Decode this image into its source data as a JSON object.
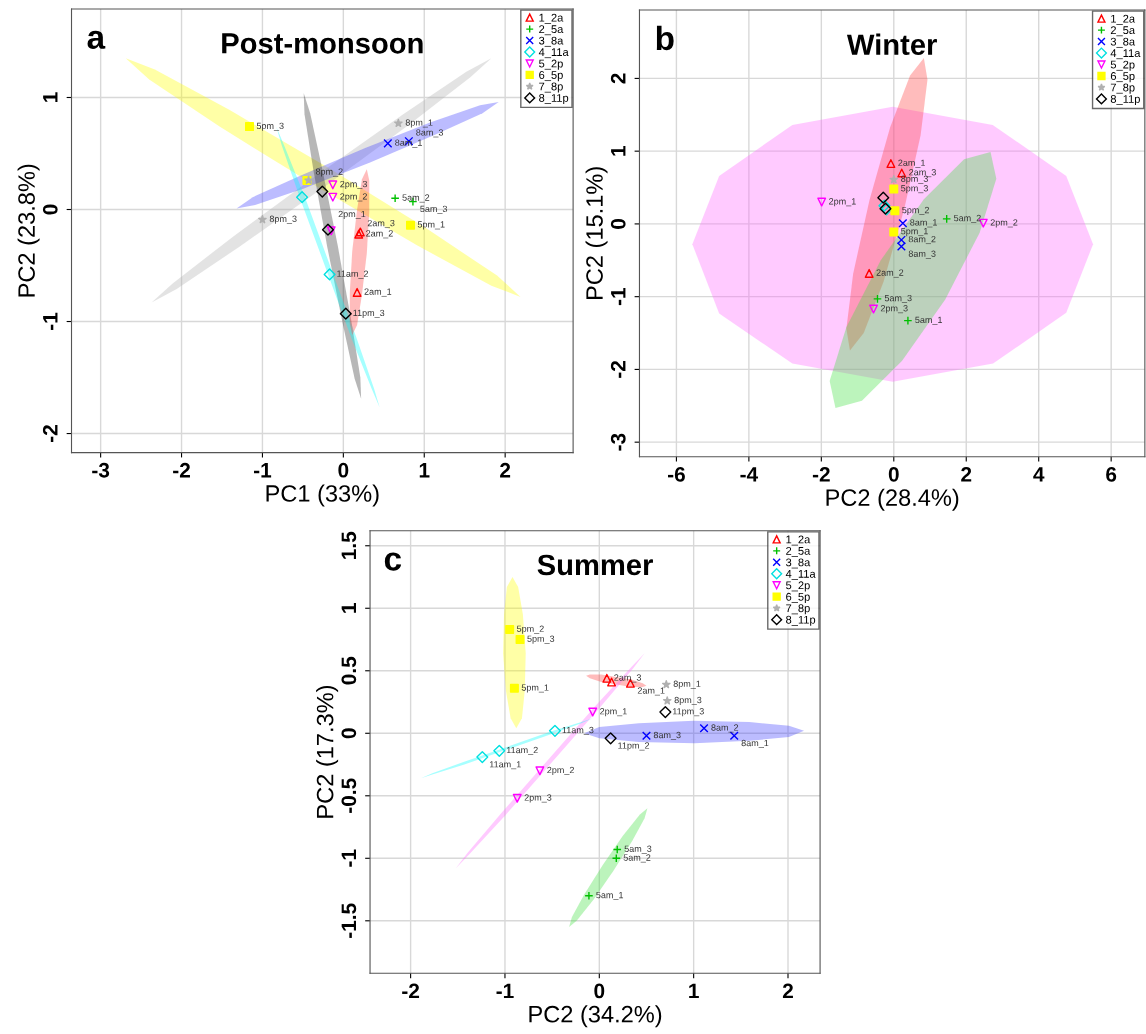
{
  "chart_data": [
    {
      "type": "scatter",
      "title": "Post-monsoon",
      "xlabel": "PC1 (33%)",
      "ylabel": "PC2 (23.8%)",
      "xlim": [
        -3.36,
        2.84
      ],
      "ylim": [
        -2.17,
        1.79
      ],
      "xticks": [
        -3,
        -2,
        -1,
        0,
        1,
        2
      ],
      "yticks": [
        -2,
        -1,
        0,
        1
      ],
      "grid": true,
      "legend": "top right",
      "series": [
        {
          "type": "area",
          "color": "#ffff00",
          "x": [
            -2.69,
            -2.33,
            -1.41,
            -0.18,
            1.03,
            1.9,
            2.19,
            1.83,
            0.91,
            -0.32,
            -1.53,
            -2.4
          ],
          "values": [
            1.35,
            1.25,
            0.89,
            0.37,
            -0.17,
            -0.59,
            -0.78,
            -0.68,
            -0.32,
            0.2,
            0.74,
            1.16
          ]
        },
        {
          "type": "area",
          "color": "#b0b0b0",
          "x": [
            -2.37,
            -2.06,
            -1.28,
            -0.22,
            0.82,
            1.57,
            1.83,
            1.52,
            0.74,
            -0.32,
            -1.36,
            -2.11
          ],
          "values": [
            -0.83,
            -0.71,
            -0.33,
            0.21,
            0.76,
            1.18,
            1.35,
            1.23,
            0.85,
            0.31,
            -0.24,
            -0.66
          ]
        },
        {
          "type": "area",
          "color": "#4040ff",
          "x": [
            -1.32,
            -1.09,
            -0.48,
            0.33,
            1.14,
            1.72,
            1.92,
            1.69,
            1.08,
            0.27,
            -0.54,
            -1.12
          ],
          "values": [
            0.01,
            0.04,
            0.19,
            0.42,
            0.67,
            0.86,
            0.96,
            0.93,
            0.78,
            0.55,
            0.3,
            0.11
          ]
        },
        {
          "type": "area",
          "color": "#303030",
          "x": [
            -0.49,
            -0.41,
            -0.26,
            -0.07,
            0.1,
            0.21,
            0.22,
            0.14,
            -0.01,
            -0.2,
            -0.37,
            -0.48
          ],
          "values": [
            1.04,
            0.86,
            0.36,
            -0.32,
            -1.0,
            -1.5,
            -1.69,
            -1.51,
            -1.01,
            -0.33,
            0.35,
            0.85
          ]
        },
        {
          "type": "area",
          "color": "#00ffff",
          "x": [
            -0.83,
            -0.73,
            -0.48,
            -0.16,
            0.16,
            0.38,
            0.45,
            0.35,
            0.1,
            -0.22,
            -0.54,
            -0.76
          ],
          "values": [
            0.74,
            0.57,
            0.12,
            -0.51,
            -1.14,
            -1.6,
            -1.77,
            -1.6,
            -1.15,
            -0.52,
            0.11,
            0.57
          ]
        },
        {
          "type": "area",
          "color": "#ff4040",
          "x": [
            0.29,
            0.32,
            0.32,
            0.29,
            0.23,
            0.17,
            0.11,
            0.08,
            0.08,
            0.11,
            0.17,
            0.23
          ],
          "values": [
            0.36,
            0.26,
            -0.02,
            -0.39,
            -0.76,
            -1.03,
            -1.12,
            -1.02,
            -0.74,
            -0.37,
            0,
            0.27
          ]
        },
        {
          "name": "1_2a",
          "type": "scatter",
          "color": "#ff0000",
          "marker": "triangle",
          "x": [
            0.17,
            0.19,
            0.21
          ],
          "values": [
            -0.74,
            -0.22,
            -0.2
          ]
        },
        {
          "name": "2_5a",
          "type": "scatter",
          "color": "#00c000",
          "marker": "plus",
          "x": [
            0.64,
            0.86
          ],
          "values": [
            0.1,
            0.07
          ]
        },
        {
          "name": "3_8a",
          "type": "scatter",
          "color": "#0000ff",
          "marker": "x",
          "x": [
            0.55,
            0.81
          ],
          "values": [
            0.59,
            0.61
          ]
        },
        {
          "name": "4_11a",
          "type": "scatter",
          "color": "#00e0e0",
          "marker": "diamond",
          "x": [
            -0.17,
            -0.51
          ],
          "values": [
            -0.58,
            0.11
          ]
        },
        {
          "name": "5_2p",
          "type": "scatter",
          "color": "#ff00ff",
          "marker": "triangle_down",
          "x": [
            -0.13,
            -0.13,
            -0.15
          ],
          "values": [
            0.22,
            0.11,
            -0.19
          ]
        },
        {
          "name": "6_5p",
          "type": "scatter",
          "color": "#ffff00",
          "marker": "square",
          "x": [
            -1.16,
            -0.45,
            0.83
          ],
          "values": [
            0.74,
            0.26,
            -0.14
          ]
        },
        {
          "name": "7_8p",
          "type": "scatter",
          "color": "#b0b0b0",
          "marker": "star",
          "x": [
            0.68,
            -1.0,
            -0.43
          ],
          "values": [
            0.77,
            -0.09,
            0.26
          ]
        },
        {
          "name": "8_11p",
          "type": "scatter",
          "color": "#000000",
          "marker": "diamond",
          "x": [
            0.03,
            -0.19,
            -0.26
          ],
          "values": [
            -0.93,
            -0.18,
            0.16
          ]
        }
      ],
      "annotations": [
        "a",
        {
          "text": "2am_1",
          "x": 0.17,
          "y": -0.74
        },
        {
          "text": "2am_2",
          "x": 0.19,
          "y": -0.22
        },
        {
          "text": "2am_3",
          "x": 0.21,
          "y": -0.2
        },
        {
          "text": "5am_2",
          "x": 0.64,
          "y": 0.1
        },
        {
          "text": "5am_3",
          "x": 0.86,
          "y": 0.07
        },
        {
          "text": "8am_1",
          "x": 0.55,
          "y": 0.59
        },
        {
          "text": "8am_3",
          "x": 0.81,
          "y": 0.61
        },
        {
          "text": "11am_2",
          "x": -0.17,
          "y": -0.58
        },
        {
          "text": "2pm_3",
          "x": -0.13,
          "y": 0.22
        },
        {
          "text": "2pm_2",
          "x": -0.13,
          "y": 0.11
        },
        {
          "text": "2pm_1",
          "x": -0.15,
          "y": -0.19
        },
        {
          "text": "5pm_3",
          "x": -1.16,
          "y": 0.74
        },
        {
          "text": "5pm_1",
          "x": 0.83,
          "y": -0.14
        },
        {
          "text": "8pm_1",
          "x": 0.68,
          "y": 0.77
        },
        {
          "text": "8pm_3",
          "x": -1.0,
          "y": -0.09
        },
        {
          "text": "8pm_2",
          "x": -0.43,
          "y": 0.26
        },
        {
          "text": "11pm_3",
          "x": 0.03,
          "y": -0.93
        }
      ]
    },
    {
      "type": "scatter",
      "title": "Winter",
      "xlabel": "PC2 (28.4%)",
      "ylabel": "PC2 (15.1%)",
      "xlim": [
        -7.02,
        6.93
      ],
      "ylim": [
        -3.2,
        2.94
      ],
      "xticks": [
        -6,
        -4,
        -2,
        0,
        2,
        4,
        6
      ],
      "yticks": [
        -3,
        -2,
        -1,
        0,
        1,
        2
      ],
      "grid": true,
      "legend": "top right",
      "series": [
        {
          "type": "area",
          "color": "#ff66ff",
          "x": [
            -5.56,
            -4.82,
            -2.8,
            -0.03,
            2.73,
            4.76,
            5.5,
            4.76,
            2.74,
            -0.03,
            -2.8,
            -4.82
          ],
          "values": [
            -0.28,
            0.66,
            1.36,
            1.61,
            1.36,
            0.66,
            -0.28,
            -1.22,
            -1.92,
            -2.17,
            -1.92,
            -1.23
          ]
        },
        {
          "type": "area",
          "color": "#ff4040",
          "x": [
            0.83,
            0.93,
            0.74,
            0.29,
            -0.28,
            -0.83,
            -1.21,
            -1.31,
            -1.12,
            -0.67,
            -0.1,
            0.45
          ],
          "values": [
            2.28,
            1.98,
            1.22,
            0.21,
            -0.79,
            -1.5,
            -1.74,
            -1.44,
            -0.68,
            0.33,
            1.33,
            2.04
          ]
        },
        {
          "type": "area",
          "color": "#40e040",
          "x": [
            2.67,
            2.83,
            2.37,
            1.42,
            0.23,
            -0.88,
            -1.61,
            -1.77,
            -1.31,
            -0.36,
            0.83,
            1.94
          ],
          "values": [
            0.99,
            0.62,
            -0.12,
            -1.04,
            -1.88,
            -2.43,
            -2.53,
            -2.16,
            -1.42,
            -0.5,
            0.34,
            0.89
          ]
        },
        {
          "name": "1_2a",
          "type": "scatter",
          "color": "#ff0000",
          "marker": "triangle",
          "x": [
            -0.08,
            0.22,
            -0.68
          ],
          "values": [
            0.83,
            0.7,
            -0.68
          ]
        },
        {
          "name": "2_5a",
          "type": "scatter",
          "color": "#00c000",
          "marker": "plus",
          "x": [
            1.46,
            -0.45,
            0.39
          ],
          "values": [
            0.07,
            -1.03,
            -1.33
          ]
        },
        {
          "name": "3_8a",
          "type": "scatter",
          "color": "#0000ff",
          "marker": "x",
          "x": [
            0.25,
            0.21,
            0.21
          ],
          "values": [
            0.01,
            -0.22,
            -0.31
          ]
        },
        {
          "name": "4_11a",
          "type": "scatter",
          "color": "#00e0e0",
          "marker": "diamond",
          "x": [
            -0.26,
            -0.2
          ],
          "values": [
            0.25,
            0.2
          ]
        },
        {
          "name": "5_2p",
          "type": "scatter",
          "color": "#ff00ff",
          "marker": "triangle_down",
          "x": [
            -1.99,
            2.47,
            -0.56
          ],
          "values": [
            0.3,
            0.01,
            -1.17
          ]
        },
        {
          "name": "6_5p",
          "type": "scatter",
          "color": "#ffff00",
          "marker": "square",
          "x": [
            0.0,
            0.0,
            0.03
          ],
          "values": [
            0.48,
            -0.11,
            0.18
          ]
        },
        {
          "name": "7_8p",
          "type": "scatter",
          "color": "#b0b0b0",
          "marker": "star",
          "x": [
            0.0
          ],
          "values": [
            0.61
          ]
        },
        {
          "name": "8_11p",
          "type": "scatter",
          "color": "#000000",
          "marker": "diamond",
          "x": [
            -0.29,
            -0.23
          ],
          "values": [
            0.36,
            0.21
          ]
        }
      ],
      "annotations": [
        "b",
        {
          "text": "2am_1",
          "x": -0.08,
          "y": 0.83
        },
        {
          "text": "2am_3",
          "x": 0.22,
          "y": 0.7
        },
        {
          "text": "2am_2",
          "x": -0.68,
          "y": -0.68
        },
        {
          "text": "5am_2",
          "x": 1.46,
          "y": 0.07
        },
        {
          "text": "5am_3",
          "x": -0.45,
          "y": -1.03
        },
        {
          "text": "5am_1",
          "x": 0.39,
          "y": -1.33
        },
        {
          "text": "8am_1",
          "x": 0.25,
          "y": 0.01
        },
        {
          "text": "8am_2",
          "x": 0.21,
          "y": -0.22
        },
        {
          "text": "8am_3",
          "x": 0.21,
          "y": -0.31
        },
        {
          "text": "2pm_1",
          "x": -1.99,
          "y": 0.3
        },
        {
          "text": "2pm_2",
          "x": 2.47,
          "y": 0.01
        },
        {
          "text": "2pm_3",
          "x": -0.56,
          "y": -1.17
        },
        {
          "text": "5pm_3",
          "x": 0.0,
          "y": 0.48
        },
        {
          "text": "5pm_1",
          "x": 0.0,
          "y": -0.11
        },
        {
          "text": "5pm_2",
          "x": 0.03,
          "y": 0.18
        },
        {
          "text": "8pm_3",
          "x": 0.0,
          "y": 0.61
        }
      ]
    },
    {
      "type": "scatter",
      "title": "Summer",
      "xlabel": "PC2 (34.2%)",
      "ylabel": "PC2 (17.3%)",
      "xlim": [
        -2.43,
        2.34
      ],
      "ylim": [
        -1.92,
        1.62
      ],
      "xticks": [
        -2,
        -1,
        0,
        1,
        2
      ],
      "yticks": [
        -1.5,
        -1,
        -0.5,
        0,
        0.5,
        1,
        1.5
      ],
      "grid": true,
      "legend": "top right",
      "series": [
        {
          "type": "area",
          "color": "#ffff00",
          "x": [
            -0.92,
            -0.86,
            -0.81,
            -0.78,
            -0.79,
            -0.82,
            -0.88,
            -0.94,
            -0.99,
            -1.02,
            -1.01,
            -0.98
          ],
          "values": [
            1.25,
            1.17,
            0.95,
            0.64,
            0.34,
            0.12,
            0.04,
            0.12,
            0.34,
            0.64,
            0.95,
            1.17
          ]
        },
        {
          "type": "area",
          "color": "#ff4040",
          "x": [
            -0.14,
            -0.1,
            0.02,
            0.18,
            0.34,
            0.46,
            0.5,
            0.46,
            0.34,
            0.18,
            0.02,
            -0.1
          ],
          "values": [
            0.46,
            0.47,
            0.47,
            0.45,
            0.43,
            0.4,
            0.38,
            0.37,
            0.37,
            0.39,
            0.41,
            0.44
          ]
        },
        {
          "type": "area",
          "color": "#ff66ff",
          "x": [
            0.48,
            0.36,
            0,
            -0.5,
            -1.0,
            -1.38,
            -1.52,
            -1.4,
            -1.04,
            -0.54,
            -0.04,
            0.34
          ],
          "values": [
            0.64,
            0.52,
            0.2,
            -0.23,
            -0.66,
            -0.97,
            -1.08,
            -0.96,
            -0.64,
            -0.21,
            0.22,
            0.53
          ]
        },
        {
          "type": "area",
          "color": "#00ffff",
          "x": [
            -1.89,
            -1.77,
            -1.43,
            -0.98,
            -0.52,
            -0.19,
            -0.07,
            -0.19,
            -0.53,
            -0.98,
            -1.44,
            -1.77
          ],
          "values": [
            -0.36,
            -0.33,
            -0.25,
            -0.13,
            -0.01,
            0.08,
            0.12,
            0.09,
            0.01,
            -0.11,
            -0.23,
            -0.32
          ]
        },
        {
          "type": "area",
          "color": "#4040ff",
          "x": [
            -0.16,
            0,
            0.42,
            1.0,
            1.59,
            2.01,
            2.17,
            2.01,
            1.59,
            1.01,
            0.42,
            0
          ],
          "values": [
            0.0,
            0.05,
            0.08,
            0.1,
            0.09,
            0.06,
            0.02,
            -0.03,
            -0.06,
            -0.08,
            -0.07,
            -0.04
          ]
        },
        {
          "type": "area",
          "color": "#40e040",
          "x": [
            0.51,
            0.48,
            0.35,
            0.15,
            -0.06,
            -0.24,
            -0.32,
            -0.29,
            -0.16,
            0.04,
            0.25,
            0.43
          ],
          "values": [
            -0.6,
            -0.68,
            -0.86,
            -1.1,
            -1.33,
            -1.5,
            -1.55,
            -1.47,
            -1.29,
            -1.05,
            -0.82,
            -0.65
          ]
        },
        {
          "name": "1_2a",
          "type": "scatter",
          "color": "#ff0000",
          "marker": "triangle",
          "x": [
            0.08,
            0.13,
            0.33
          ],
          "values": [
            0.44,
            0.41,
            0.4
          ]
        },
        {
          "name": "2_5a",
          "type": "scatter",
          "color": "#00c000",
          "marker": "plus",
          "x": [
            0.19,
            0.18,
            -0.11
          ],
          "values": [
            -0.93,
            -1.0,
            -1.3
          ]
        },
        {
          "name": "3_8a",
          "type": "scatter",
          "color": "#0000ff",
          "marker": "x",
          "x": [
            1.11,
            1.43,
            0.5
          ],
          "values": [
            0.04,
            -0.02,
            -0.02
          ]
        },
        {
          "name": "4_11a",
          "type": "scatter",
          "color": "#00e0e0",
          "marker": "diamond",
          "x": [
            -0.47,
            -1.06,
            -1.24
          ],
          "values": [
            0.02,
            -0.14,
            -0.19
          ]
        },
        {
          "name": "5_2p",
          "type": "scatter",
          "color": "#ff00ff",
          "marker": "triangle_down",
          "x": [
            -0.07,
            -0.63,
            -0.87
          ],
          "values": [
            0.17,
            -0.3,
            -0.52
          ]
        },
        {
          "name": "6_5p",
          "type": "scatter",
          "color": "#ffff00",
          "marker": "square",
          "x": [
            -0.95,
            -0.84,
            -0.9
          ],
          "values": [
            0.83,
            0.75,
            0.36
          ]
        },
        {
          "name": "7_8p",
          "type": "scatter",
          "color": "#b0b0b0",
          "marker": "star",
          "x": [
            0.71,
            0.72
          ],
          "values": [
            0.39,
            0.26
          ]
        },
        {
          "name": "8_11p",
          "type": "scatter",
          "color": "#000000",
          "marker": "diamond",
          "x": [
            0.7,
            0.12
          ],
          "values": [
            0.17,
            -0.04
          ]
        }
      ],
      "annotations": [
        "c",
        {
          "text": "2am_3",
          "x": 0.08,
          "y": 0.44
        },
        {
          "text": "2am_1",
          "x": 0.33,
          "y": 0.4
        },
        {
          "text": "5am_3",
          "x": 0.19,
          "y": -0.93
        },
        {
          "text": "5am_2",
          "x": 0.18,
          "y": -1.0
        },
        {
          "text": "5am_1",
          "x": -0.11,
          "y": -1.3
        },
        {
          "text": "8am_2",
          "x": 1.11,
          "y": 0.04
        },
        {
          "text": "8am_1",
          "x": 1.43,
          "y": -0.02
        },
        {
          "text": "8am_3",
          "x": 0.5,
          "y": -0.02
        },
        {
          "text": "11am_3",
          "x": -0.47,
          "y": 0.02
        },
        {
          "text": "11am_2",
          "x": -1.06,
          "y": -0.14
        },
        {
          "text": "11am_1",
          "x": -1.24,
          "y": -0.19
        },
        {
          "text": "2pm_1",
          "x": -0.07,
          "y": 0.17
        },
        {
          "text": "2pm_2",
          "x": -0.63,
          "y": -0.3
        },
        {
          "text": "2pm_3",
          "x": -0.87,
          "y": -0.52
        },
        {
          "text": "5pm_2",
          "x": -0.95,
          "y": 0.83
        },
        {
          "text": "5pm_3",
          "x": -0.84,
          "y": 0.75
        },
        {
          "text": "5pm_1",
          "x": -0.9,
          "y": 0.36
        },
        {
          "text": "8pm_1",
          "x": 0.71,
          "y": 0.39
        },
        {
          "text": "8pm_3",
          "x": 0.72,
          "y": 0.26
        },
        {
          "text": "11pm_3",
          "x": 0.7,
          "y": 0.17
        },
        {
          "text": "11pm_2",
          "x": 0.12,
          "y": -0.04
        }
      ]
    }
  ]
}
